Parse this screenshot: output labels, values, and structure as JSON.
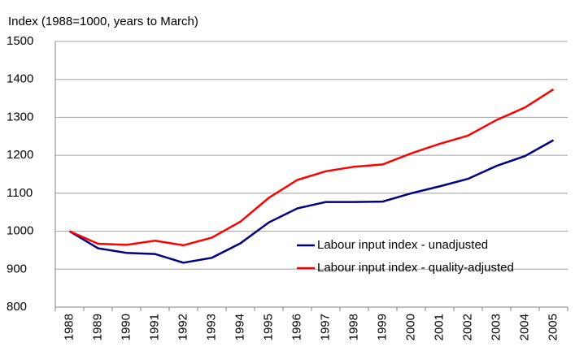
{
  "chart_data": {
    "type": "line",
    "y_label": "Index (1988=1000, years to March)",
    "categories": [
      "1988",
      "1989",
      "1990",
      "1991",
      "1992",
      "1993",
      "1994",
      "1995",
      "1996",
      "1997",
      "1998",
      "1999",
      "2000",
      "2001",
      "2002",
      "2003",
      "2004",
      "2005"
    ],
    "series": [
      {
        "name": "Labour input index - unadjusted",
        "color": "#000080",
        "values": [
          1000,
          955,
          943,
          940,
          917,
          930,
          968,
          1023,
          1060,
          1077,
          1077,
          1078,
          1100,
          1118,
          1138,
          1172,
          1198,
          1240
        ]
      },
      {
        "name": "Labour input index - quality-adjusted",
        "color": "#ff0000",
        "values": [
          1000,
          967,
          964,
          975,
          963,
          983,
          1025,
          1088,
          1135,
          1158,
          1170,
          1176,
          1205,
          1230,
          1252,
          1293,
          1326,
          1374
        ]
      }
    ],
    "ylim": [
      800,
      1500
    ],
    "yticks": [
      800,
      900,
      1000,
      1100,
      1200,
      1300,
      1400,
      1500
    ],
    "grid": true,
    "legend": "lower right"
  }
}
